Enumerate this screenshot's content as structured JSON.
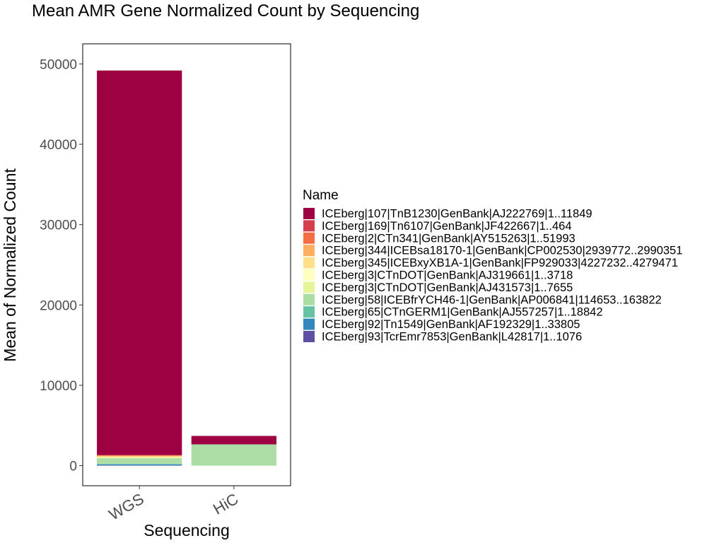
{
  "chart_data": {
    "type": "bar",
    "stacked": true,
    "title": "Mean AMR Gene Normalized Count by Sequencing",
    "xlabel": "Sequencing",
    "ylabel": "Mean of Normalized Count",
    "categories": [
      "WGS",
      "HiC"
    ],
    "ylim": [
      -2500,
      52500
    ],
    "yticks": [
      0,
      10000,
      20000,
      30000,
      40000,
      50000
    ],
    "grid": false,
    "legend": {
      "title": "Name",
      "position": "right"
    },
    "series": [
      {
        "name": "ICEberg|107|TnB1230|GenBank|AJ222769|1..11849",
        "color": "#9E0142",
        "values": [
          47850,
          1050
        ]
      },
      {
        "name": "ICEberg|169|Tn6107|GenBank|JF422667|1..464",
        "color": "#D53E4F",
        "values": [
          40,
          0
        ]
      },
      {
        "name": "ICEberg|2|CTn341|GenBank|AY515263|1..51993",
        "color": "#F46D43",
        "values": [
          40,
          0
        ]
      },
      {
        "name": "ICEberg|344|ICEBsa18170-1|GenBank|CP002530|2939772..2990351",
        "color": "#FDAE61",
        "values": [
          80,
          0
        ]
      },
      {
        "name": "ICEberg|345|ICEBxyXB1A-1|GenBank|FP929033|4227232..4279471",
        "color": "#FEE08B",
        "values": [
          150,
          0
        ]
      },
      {
        "name": "ICEberg|3|CTnDOT|GenBank|AJ319661|1..3718",
        "color": "#FFFFBF",
        "values": [
          40,
          0
        ]
      },
      {
        "name": "ICEberg|3|CTnDOT|GenBank|AJ431573|1..7655",
        "color": "#E6F598",
        "values": [
          60,
          0
        ]
      },
      {
        "name": "ICEberg|58|ICEBfrYCH46-1|GenBank|AP006841|114653..163822",
        "color": "#ABDDA4",
        "values": [
          700,
          2650
        ]
      },
      {
        "name": "ICEberg|65|CTnGERM1|GenBank|AJ557257|1..18842",
        "color": "#66C2A5",
        "values": [
          60,
          0
        ]
      },
      {
        "name": "ICEberg|92|Tn1549|GenBank|AF192329|1..33805",
        "color": "#3288BD",
        "values": [
          120,
          0
        ]
      },
      {
        "name": "ICEberg|93|TcrEmr7853|GenBank|L42817|1..1076",
        "color": "#5E4FA2",
        "values": [
          40,
          0
        ]
      }
    ]
  }
}
